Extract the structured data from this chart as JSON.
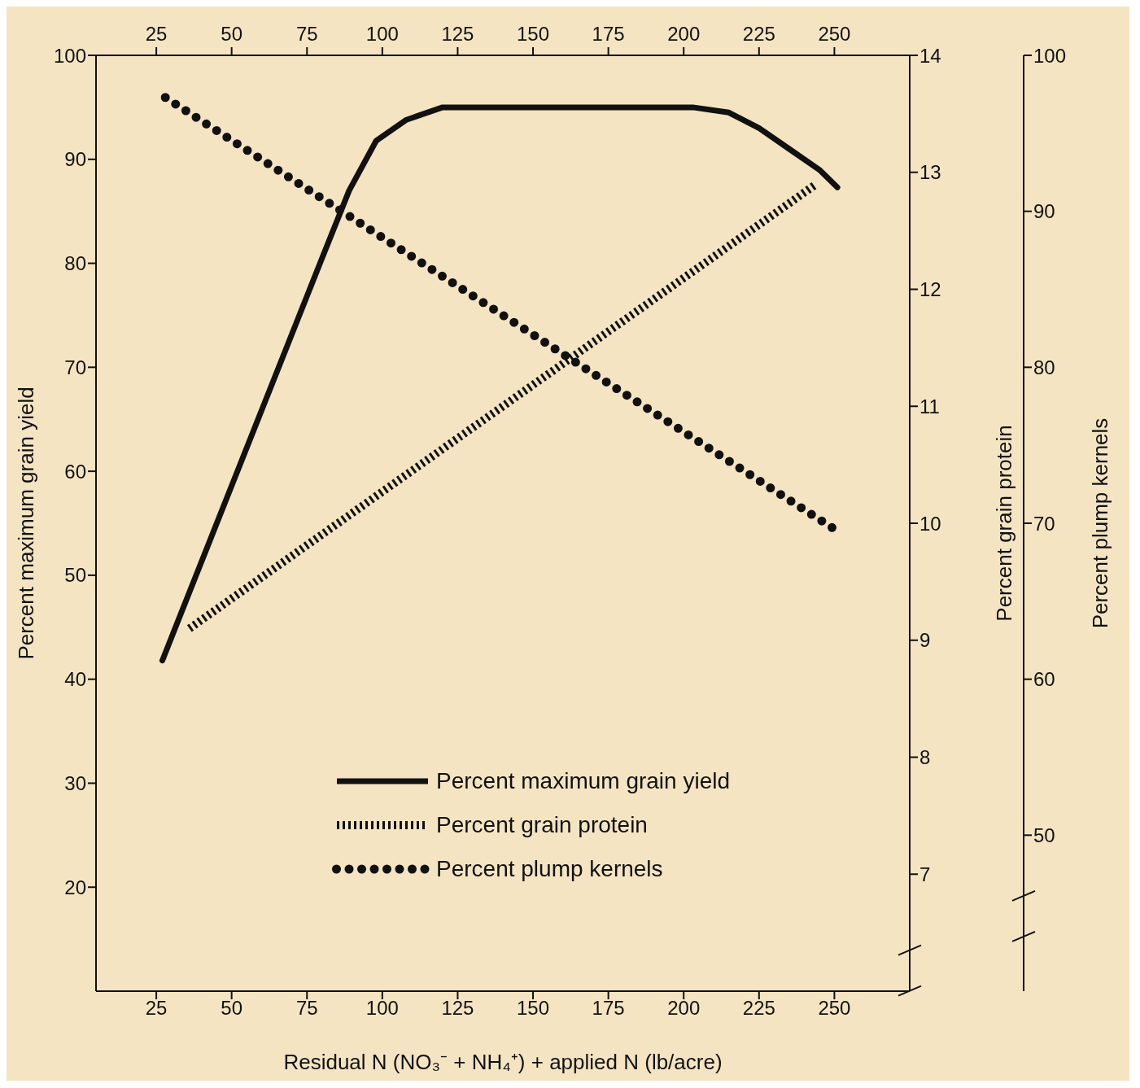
{
  "chart_data": {
    "type": "line",
    "xlabel": "Residual N (NO₃⁻ + NH₄⁺) + applied N (lb/acre)",
    "ylabel": "Percent maximum grain yield",
    "y2label": "Percent grain protein",
    "y3label": "Percent plump kernels",
    "xlim": [
      5,
      275
    ],
    "xticks": [
      25,
      50,
      75,
      100,
      125,
      150,
      175,
      200,
      225,
      250
    ],
    "x2lim": [
      5,
      275
    ],
    "x2ticks": [
      25,
      50,
      75,
      100,
      125,
      150,
      175,
      200,
      225,
      250
    ],
    "ylim": [
      10,
      100
    ],
    "yticks": [
      20,
      30,
      40,
      50,
      60,
      70,
      80,
      90,
      100
    ],
    "y2lim": [
      6,
      14
    ],
    "y2ticks": [
      7,
      8,
      9,
      10,
      11,
      12,
      13,
      14
    ],
    "y3lim": [
      40,
      100
    ],
    "y3ticks": [
      50,
      60,
      70,
      80,
      90,
      100
    ],
    "grid": false,
    "legend": "bottom",
    "marker": "none",
    "series": [
      {
        "name": "Percent maximum grain yield",
        "color": "#111111",
        "line_style": "solid",
        "x": [
          27,
          40,
          50,
          60,
          70,
          80,
          89,
          98,
          108,
          120,
          150,
          180,
          203,
          215,
          225,
          235,
          245,
          251
        ],
        "values": [
          41.8,
          51.3,
          58.6,
          65.9,
          73.2,
          80.5,
          87,
          91.8,
          93.8,
          95,
          95,
          95,
          95,
          94.5,
          93,
          91,
          89,
          87.3
        ]
      },
      {
        "name": "Percent grain protein",
        "color": "#111111",
        "line_style": "dashed",
        "axis": "y2",
        "x": [
          36,
          244
        ],
        "values": [
          9.1,
          12.9
        ]
      },
      {
        "name": "Percent plump kernels",
        "color": "#111111",
        "line_style": "dotted",
        "axis": "y3",
        "x": [
          28,
          251
        ],
        "values": [
          97.3,
          69.5
        ]
      }
    ]
  }
}
